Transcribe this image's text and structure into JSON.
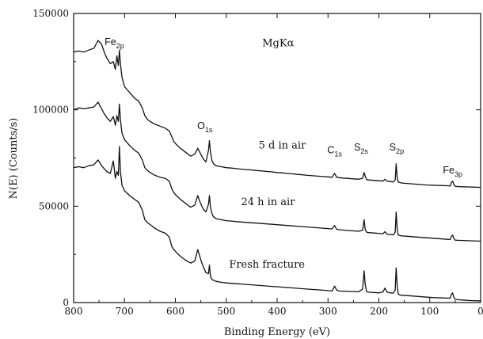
{
  "chart_data": {
    "type": "line",
    "title": "",
    "xlabel": "Binding Energy  (eV)",
    "ylabel": "N(E)  (Counts/s)",
    "xlim": [
      800,
      0
    ],
    "ylim": [
      0,
      150000
    ],
    "x_reversed": true,
    "grid": false,
    "x_ticks": [
      800,
      700,
      600,
      500,
      400,
      300,
      200,
      100,
      0
    ],
    "x_tick_labels": [
      "800",
      "700",
      "600",
      "500",
      "400",
      "300",
      "200",
      "100",
      "0"
    ],
    "y_ticks": [
      0,
      50000,
      100000,
      150000
    ],
    "y_tick_labels": [
      "0",
      "50000",
      "100000",
      "150000"
    ],
    "annotations": [
      {
        "text": "MgKα",
        "x": 398,
        "y": 133000
      },
      {
        "text": "5 d in air",
        "x": 390,
        "y": 80000
      },
      {
        "text": "24 h in air",
        "x": 418,
        "y": 50500
      },
      {
        "text": "Fresh fracture",
        "x": 420,
        "y": 18000
      }
    ],
    "peak_labels": [
      {
        "main": "Fe",
        "sub": "2p",
        "x": 720,
        "y": 133500
      },
      {
        "main": "O",
        "sub": "1s",
        "x": 542,
        "y": 90000
      },
      {
        "main": "C",
        "sub": "1s",
        "x": 287,
        "y": 77500
      },
      {
        "main": "S",
        "sub": "2s",
        "x": 235,
        "y": 79000
      },
      {
        "main": "S",
        "sub": "2p",
        "x": 165,
        "y": 79000
      },
      {
        "main": "Fe",
        "sub": "3p",
        "x": 55,
        "y": 67000
      }
    ],
    "series": [
      {
        "name": "5 d in air",
        "x": [
          800,
          790,
          780,
          770,
          760,
          752,
          745,
          740,
          735,
          728,
          722,
          718,
          715,
          712,
          710,
          708,
          705,
          700,
          690,
          680,
          672,
          665,
          660,
          655,
          650,
          640,
          630,
          620,
          612,
          607,
          603,
          598,
          590,
          580,
          570,
          562,
          556,
          552,
          548,
          545,
          540,
          535,
          533,
          531,
          528,
          525,
          520,
          510,
          500,
          490,
          480,
          470,
          460,
          450,
          440,
          430,
          420,
          410,
          400,
          390,
          380,
          370,
          360,
          350,
          340,
          330,
          320,
          310,
          300,
          292,
          287,
          283,
          278,
          270,
          260,
          250,
          240,
          232,
          229,
          227,
          224,
          220,
          210,
          200,
          192,
          188,
          184,
          178,
          172,
          168,
          166,
          164,
          162,
          159,
          155,
          145,
          135,
          125,
          115,
          105,
          95,
          85,
          75,
          65,
          60,
          57,
          55,
          53,
          50,
          45,
          35,
          25,
          15,
          5,
          0
        ],
        "values": [
          130000,
          130500,
          130000,
          131000,
          132000,
          136000,
          134000,
          130000,
          127000,
          124000,
          125000,
          121000,
          128000,
          123000,
          131000,
          124000,
          117000,
          112000,
          109000,
          106000,
          104500,
          101000,
          97000,
          95000,
          94000,
          92500,
          91500,
          90500,
          89000,
          86000,
          83500,
          82000,
          80000,
          78000,
          76000,
          77000,
          80000,
          78000,
          76000,
          74500,
          73000,
          79000,
          84000,
          78000,
          73500,
          72000,
          71000,
          70500,
          70000,
          69800,
          69500,
          69200,
          69000,
          68800,
          68500,
          68300,
          68000,
          67800,
          67500,
          67300,
          67000,
          66800,
          66500,
          66300,
          66000,
          65800,
          65600,
          65400,
          65200,
          65000,
          67000,
          65000,
          64800,
          64600,
          64400,
          64200,
          64000,
          64500,
          67500,
          65500,
          63800,
          63600,
          63400,
          63200,
          63000,
          64000,
          63000,
          62800,
          62600,
          63500,
          72000,
          65000,
          62500,
          62300,
          62000,
          61800,
          61600,
          61400,
          61200,
          61000,
          60900,
          60800,
          60700,
          60600,
          60500,
          62500,
          63000,
          61500,
          60300,
          60200,
          60100,
          60000,
          59900,
          59800,
          59800
        ]
      },
      {
        "name": "24 h in air",
        "x": [
          800,
          790,
          780,
          770,
          760,
          752,
          745,
          740,
          735,
          728,
          722,
          718,
          715,
          712,
          710,
          708,
          705,
          700,
          690,
          680,
          672,
          665,
          660,
          655,
          650,
          640,
          630,
          620,
          612,
          607,
          603,
          598,
          590,
          580,
          570,
          562,
          556,
          552,
          548,
          545,
          540,
          535,
          533,
          531,
          528,
          525,
          520,
          510,
          500,
          490,
          480,
          470,
          460,
          450,
          440,
          430,
          420,
          410,
          400,
          390,
          380,
          370,
          360,
          350,
          340,
          330,
          320,
          310,
          300,
          292,
          287,
          283,
          278,
          270,
          260,
          250,
          240,
          232,
          229,
          227,
          224,
          220,
          210,
          200,
          192,
          188,
          184,
          178,
          172,
          168,
          166,
          164,
          162,
          159,
          155,
          145,
          135,
          125,
          115,
          105,
          95,
          85,
          75,
          65,
          60,
          57,
          55,
          53,
          50,
          45,
          35,
          25,
          15,
          5,
          0
        ],
        "values": [
          100000,
          101000,
          100500,
          101000,
          101500,
          104000,
          100500,
          98000,
          96000,
          94000,
          96500,
          92000,
          97000,
          94000,
          103000,
          95000,
          88000,
          84500,
          81500,
          79000,
          77500,
          74000,
          70000,
          68500,
          67500,
          66000,
          65000,
          64500,
          63000,
          59000,
          57000,
          55500,
          53500,
          51500,
          49500,
          50500,
          55500,
          52500,
          50000,
          48500,
          47000,
          51000,
          55500,
          49500,
          46000,
          44500,
          43500,
          43000,
          42500,
          42300,
          42000,
          41800,
          41600,
          41400,
          41200,
          41000,
          40800,
          40600,
          40400,
          40200,
          40000,
          39800,
          39600,
          39400,
          39200,
          39000,
          38800,
          38600,
          38400,
          38200,
          40000,
          38000,
          37800,
          37600,
          37400,
          37200,
          37000,
          37500,
          43000,
          38000,
          36500,
          36300,
          36100,
          35900,
          35700,
          36800,
          35500,
          35300,
          35100,
          36500,
          47000,
          38500,
          35000,
          34800,
          34600,
          34400,
          34200,
          34000,
          33800,
          33600,
          33400,
          33200,
          33000,
          32800,
          32700,
          34500,
          35000,
          33500,
          32400,
          32300,
          32200,
          32100,
          32000,
          31900,
          31900
        ]
      },
      {
        "name": "Fresh fracture",
        "x": [
          800,
          790,
          780,
          770,
          760,
          752,
          745,
          740,
          735,
          728,
          722,
          718,
          715,
          712,
          710,
          708,
          705,
          700,
          690,
          680,
          672,
          665,
          660,
          655,
          650,
          640,
          630,
          620,
          612,
          607,
          603,
          598,
          590,
          580,
          570,
          562,
          556,
          552,
          548,
          545,
          540,
          535,
          533,
          531,
          528,
          525,
          520,
          510,
          500,
          490,
          480,
          470,
          460,
          450,
          440,
          430,
          420,
          410,
          400,
          390,
          380,
          370,
          360,
          350,
          340,
          330,
          320,
          310,
          300,
          292,
          287,
          283,
          278,
          270,
          260,
          250,
          240,
          232,
          229,
          227,
          224,
          220,
          210,
          200,
          192,
          188,
          184,
          178,
          172,
          168,
          166,
          164,
          162,
          159,
          155,
          145,
          135,
          125,
          115,
          105,
          95,
          85,
          75,
          65,
          60,
          57,
          55,
          53,
          50,
          45,
          35,
          25,
          15,
          5,
          0
        ],
        "values": [
          70000,
          70500,
          70000,
          71000,
          71500,
          74000,
          71000,
          69500,
          68000,
          67000,
          73500,
          64500,
          68000,
          66000,
          81000,
          68000,
          61000,
          58000,
          55500,
          53500,
          52000,
          48000,
          43000,
          41500,
          40500,
          38500,
          37000,
          36000,
          34000,
          29000,
          27500,
          26000,
          24000,
          22000,
          20500,
          21500,
          27500,
          24000,
          20500,
          18500,
          15500,
          15000,
          19500,
          13500,
          12000,
          11500,
          11000,
          10500,
          10200,
          10000,
          9800,
          9600,
          9400,
          9200,
          9000,
          8800,
          8600,
          8400,
          8200,
          8000,
          7800,
          7600,
          7400,
          7200,
          7000,
          6800,
          6600,
          6400,
          6200,
          6000,
          8500,
          6500,
          6000,
          5900,
          5800,
          5700,
          5600,
          7000,
          16500,
          9500,
          5600,
          5400,
          5200,
          5000,
          5500,
          7500,
          5500,
          5000,
          4900,
          6500,
          18000,
          9000,
          4500,
          4000,
          3800,
          3600,
          3400,
          3200,
          3000,
          2800,
          2600,
          2500,
          2400,
          2300,
          2300,
          4500,
          5000,
          3000,
          1800,
          1500,
          1300,
          1100,
          1000,
          900,
          900
        ]
      }
    ]
  }
}
